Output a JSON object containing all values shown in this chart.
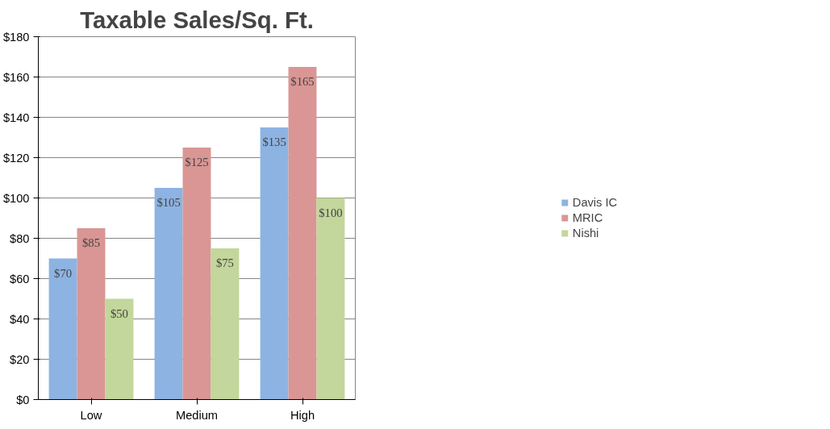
{
  "chart_data": {
    "type": "bar",
    "title": "Taxable Sales/Sq. Ft.",
    "categories": [
      "Low",
      "Medium",
      "High"
    ],
    "series": [
      {
        "name": "Davis IC",
        "color": "#8db3e2",
        "values": [
          70,
          105,
          135
        ],
        "value_labels": [
          "$70",
          "$105",
          "$135"
        ]
      },
      {
        "name": "MRIC",
        "color": "#d99694",
        "values": [
          85,
          125,
          165
        ],
        "value_labels": [
          "$85",
          "$125",
          "$165"
        ]
      },
      {
        "name": "Nishi",
        "color": "#c3d69b",
        "values": [
          50,
          75,
          100
        ],
        "value_labels": [
          "$50",
          "$75",
          "$100"
        ]
      }
    ],
    "ylim": [
      0,
      180
    ],
    "yticks": [
      {
        "value": 0,
        "label": "$0"
      },
      {
        "value": 20,
        "label": "$20"
      },
      {
        "value": 40,
        "label": "$40"
      },
      {
        "value": 60,
        "label": "$60"
      },
      {
        "value": 80,
        "label": "$80"
      },
      {
        "value": 100,
        "label": "$100"
      },
      {
        "value": 120,
        "label": "$120"
      },
      {
        "value": 140,
        "label": "$140"
      },
      {
        "value": 160,
        "label": "$160"
      },
      {
        "value": 180,
        "label": "$180"
      }
    ],
    "grid": "y",
    "legend": "right"
  }
}
